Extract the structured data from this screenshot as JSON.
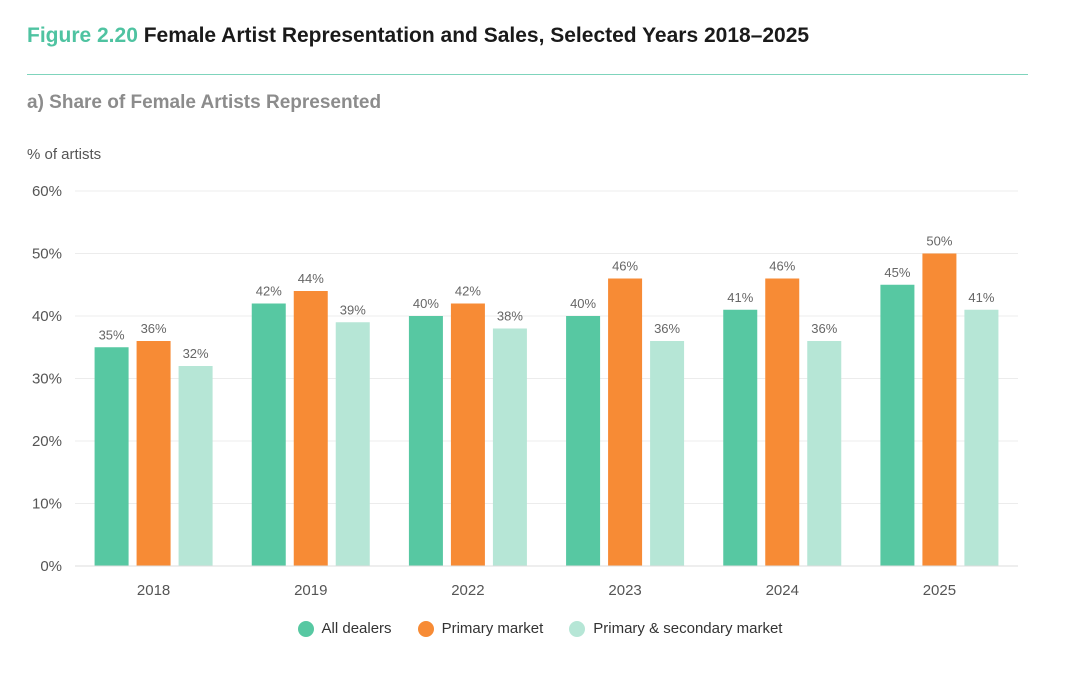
{
  "header": {
    "figure_number": "Figure 2.20",
    "figure_title": "Female Artist Representation and Sales, Selected Years 2018–2025",
    "panel_title": "a) Share of Female Artists Represented"
  },
  "colors": {
    "accent": "#4fc3a1",
    "all_dealers": "#57c8a2",
    "primary_market": "#f78b35",
    "primary_secondary": "#b6e6d6",
    "grid": "#ececec",
    "axis_text": "#555555",
    "label_text": "#666666"
  },
  "chart_data": {
    "type": "bar",
    "title": "a) Share of Female Artists Represented",
    "xlabel": "",
    "ylabel": "% of artists",
    "ylim": [
      0,
      60
    ],
    "yticks": [
      0,
      10,
      20,
      30,
      40,
      50,
      60
    ],
    "ytick_labels": [
      "0%",
      "10%",
      "20%",
      "30%",
      "40%",
      "50%",
      "60%"
    ],
    "grid": true,
    "legend_position": "bottom-center",
    "categories": [
      "2018",
      "2019",
      "2022",
      "2023",
      "2024",
      "2025"
    ],
    "series": [
      {
        "name": "All dealers",
        "color": "#57c8a2",
        "values": [
          35,
          42,
          40,
          40,
          41,
          45
        ],
        "labels": [
          "35%",
          "42%",
          "40%",
          "40%",
          "41%",
          "45%"
        ]
      },
      {
        "name": "Primary market",
        "color": "#f78b35",
        "values": [
          36,
          44,
          42,
          46,
          46,
          50
        ],
        "labels": [
          "36%",
          "44%",
          "42%",
          "46%",
          "46%",
          "50%"
        ]
      },
      {
        "name": "Primary & secondary market",
        "color": "#b6e6d6",
        "values": [
          32,
          39,
          38,
          36,
          36,
          41
        ],
        "labels": [
          "32%",
          "39%",
          "38%",
          "36%",
          "36%",
          "41%"
        ]
      }
    ]
  }
}
